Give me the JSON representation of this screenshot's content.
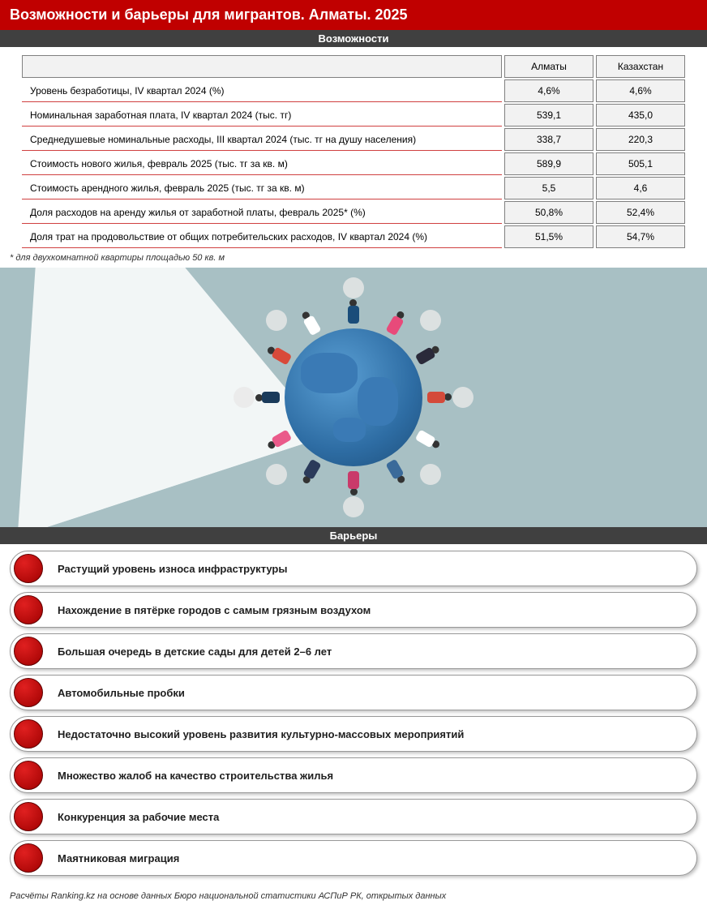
{
  "header": {
    "title": "Возможности и барьеры для мигрантов. Алматы. 2025"
  },
  "opportunities": {
    "section_title": "Возможности",
    "columns": [
      "",
      "Алматы",
      "Казахстан"
    ],
    "rows": [
      {
        "label": "Уровень безработицы, IV квартал 2024 (%)",
        "almaty": "4,6%",
        "kz": "4,6%"
      },
      {
        "label": "Номинальная заработная плата, IV квартал 2024 (тыс. тг)",
        "almaty": "539,1",
        "kz": "435,0"
      },
      {
        "label": "Среднедушевые номинальные расходы, III квартал 2024 (тыс. тг на душу населения)",
        "almaty": "338,7",
        "kz": "220,3"
      },
      {
        "label": "Стоимость нового жилья, февраль 2025 (тыс. тг за кв. м)",
        "almaty": "589,9",
        "kz": "505,1"
      },
      {
        "label": "Стоимость арендного жилья, февраль 2025 (тыс. тг за кв. м)",
        "almaty": "5,5",
        "kz": "4,6"
      },
      {
        "label": "Доля расходов на аренду жилья от заработной платы, февраль 2025* (%)",
        "almaty": "50,8%",
        "kz": "52,4%"
      },
      {
        "label": "Доля трат на продовольствие от общих потребительских расходов, IV квартал 2024 (%)",
        "almaty": "51,5%",
        "kz": "54,7%"
      }
    ],
    "footnote": "* для двухкомнатной квартиры площадью 50 кв. м"
  },
  "illustration": {
    "bg_color": "#a8c0c4",
    "globe_colors": [
      "#5a9fd4",
      "#2e6da4",
      "#1d4e7a"
    ],
    "people_colors": [
      "#1a4d7a",
      "#e84a7a",
      "#2a2a3a",
      "#d44a3a",
      "#ffffff",
      "#3a6a9a",
      "#c93a6a",
      "#2a3a5a",
      "#ea5a8a",
      "#1a3a5a",
      "#d84a3a",
      "#ffffff"
    ]
  },
  "barriers": {
    "section_title": "Барьеры",
    "items": [
      "Растущий уровень износа инфраструктуры",
      "Нахождение в пятёрке городов с самым грязным воздухом",
      "Большая очередь в детские сады для детей 2–6 лет",
      "Автомобильные пробки",
      "Недостаточно высокий уровень развития культурно-массовых мероприятий",
      "Множество жалоб на качество строительства жилья",
      "Конкуренция за рабочие места",
      "Маятниковая миграция"
    ],
    "dot_color": "#c00000"
  },
  "source": "Расчёты Ranking.kz на основе данных Бюро национальной статистики АСПиР РК, открытых данных"
}
